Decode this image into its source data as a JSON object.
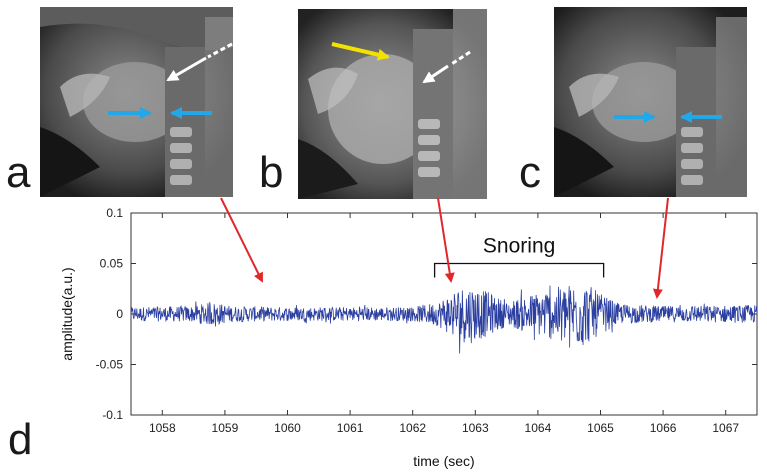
{
  "panels": {
    "a": "a",
    "b": "b",
    "c": "c",
    "d": "d"
  },
  "colors": {
    "waveform": "#2b3fa0",
    "red_arrow": "#e0282c",
    "blue_arrow": "#22a8e8",
    "yellow_arrow": "#f2e200",
    "white_arrow": "#ffffff"
  },
  "chart_data": {
    "type": "line",
    "title": "",
    "xlabel": "time (sec)",
    "ylabel": "amplitude(a.u.)",
    "xlim": [
      1057.5,
      1067.5
    ],
    "ylim": [
      -0.1,
      0.1
    ],
    "x_ticks": [
      1058,
      1059,
      1060,
      1061,
      1062,
      1063,
      1064,
      1065,
      1066,
      1067
    ],
    "x_tick_labels": [
      "1058",
      "1059",
      "1060",
      "1061",
      "1062",
      "1063",
      "1064",
      "1065",
      "1066",
      "1067"
    ],
    "y_ticks": [
      0.1,
      0.05,
      0,
      -0.05,
      -0.1
    ],
    "y_tick_labels": [
      "0.1",
      "0.05",
      "0",
      "-0.05",
      "-0.1"
    ],
    "annotation": {
      "text": "Snoring",
      "x_start": 1062.35,
      "x_end": 1065.05,
      "y": 0.05
    },
    "envelope": {
      "x": [
        1057.5,
        1058.5,
        1058.8,
        1059.1,
        1060.0,
        1061.0,
        1062.0,
        1062.4,
        1062.7,
        1062.9,
        1063.2,
        1063.5,
        1063.8,
        1064.1,
        1064.4,
        1064.7,
        1065.0,
        1065.3,
        1066.0,
        1067.5
      ],
      "y": [
        0.007,
        0.008,
        0.012,
        0.008,
        0.007,
        0.007,
        0.007,
        0.012,
        0.026,
        0.03,
        0.022,
        0.012,
        0.018,
        0.024,
        0.028,
        0.034,
        0.02,
        0.01,
        0.008,
        0.009
      ]
    }
  }
}
